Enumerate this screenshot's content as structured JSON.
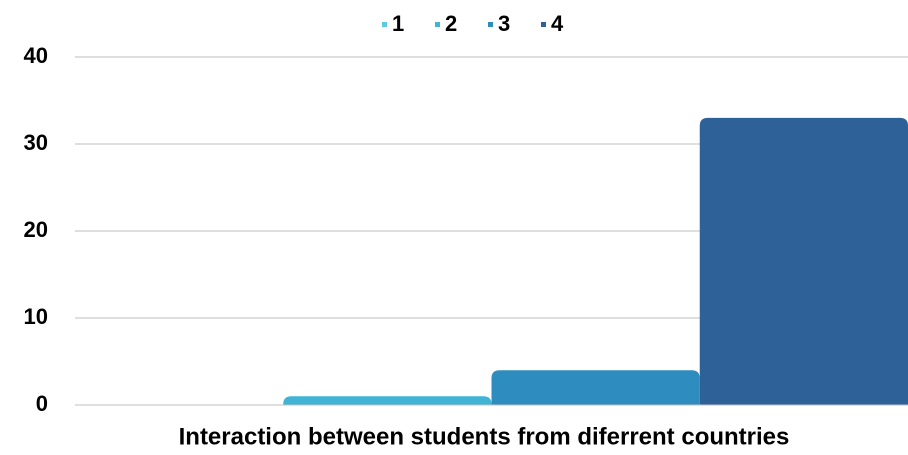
{
  "chart_data": {
    "type": "bar",
    "categories": [
      "Interaction between students from diferrent countries"
    ],
    "series": [
      {
        "name": "1",
        "color": "#5ccbdf",
        "values": [
          0
        ]
      },
      {
        "name": "2",
        "color": "#3fb4d5",
        "values": [
          1
        ]
      },
      {
        "name": "3",
        "color": "#2e8cbe",
        "values": [
          4
        ]
      },
      {
        "name": "4",
        "color": "#2f6199",
        "values": [
          33
        ]
      }
    ],
    "ylim": [
      0,
      40
    ],
    "yticks": [
      0,
      10,
      20,
      30,
      40
    ],
    "grid": true,
    "legend": "top"
  }
}
